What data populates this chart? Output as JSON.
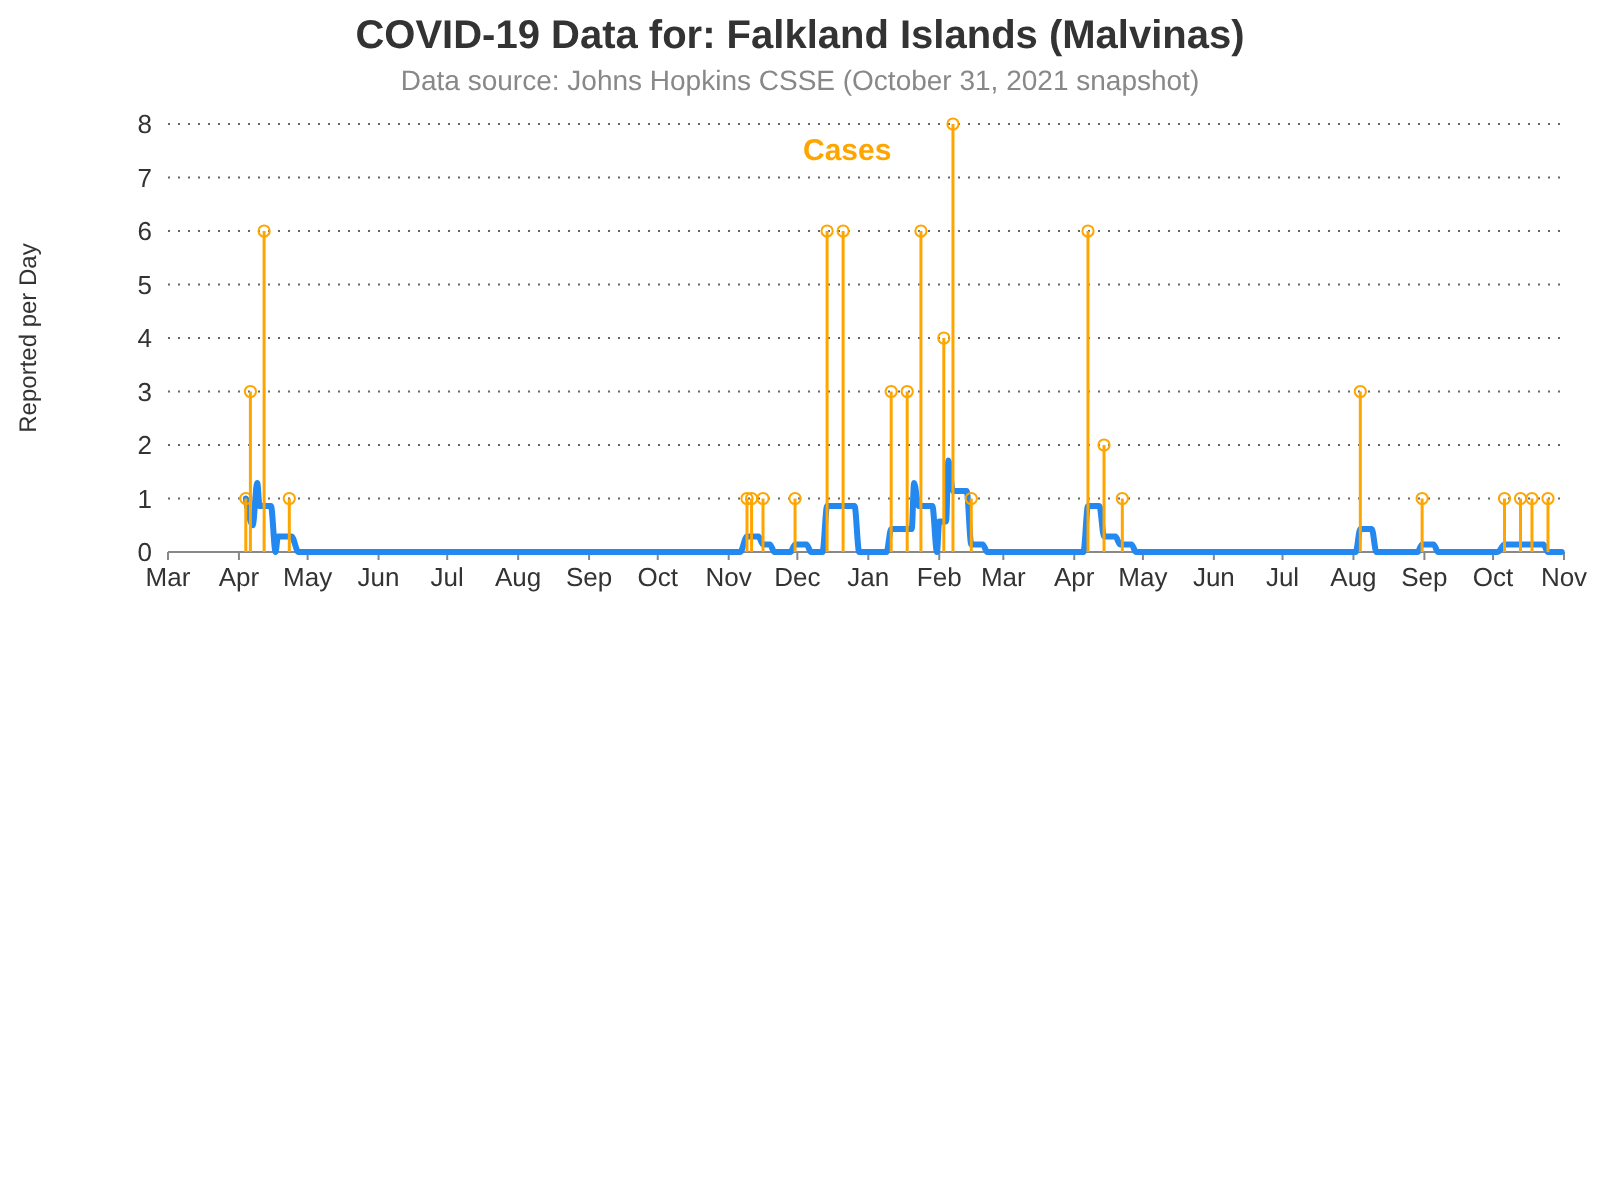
{
  "chart_data": {
    "type": "lollipop",
    "title": "COVID-19 Data for: Falkland Islands (Malvinas)",
    "subtitle": "Data source: Johns Hopkins CSSE (October 31, 2021 snapshot)",
    "ylabel": "Reported per Day",
    "xlim": [
      "2020-03-01",
      "2021-11-01"
    ],
    "xticks": [
      {
        "value": "2020-03-01",
        "label": "Mar"
      },
      {
        "value": "2020-04-01",
        "label": "Apr"
      },
      {
        "value": "2020-05-01",
        "label": "May"
      },
      {
        "value": "2020-06-01",
        "label": "Jun"
      },
      {
        "value": "2020-07-01",
        "label": "Jul"
      },
      {
        "value": "2020-08-01",
        "label": "Aug"
      },
      {
        "value": "2020-09-01",
        "label": "Sep"
      },
      {
        "value": "2020-10-01",
        "label": "Oct"
      },
      {
        "value": "2020-11-01",
        "label": "Nov"
      },
      {
        "value": "2020-12-01",
        "label": "Dec"
      },
      {
        "value": "2021-01-01",
        "label": "Jan"
      },
      {
        "value": "2021-02-01",
        "label": "Feb"
      },
      {
        "value": "2021-03-01",
        "label": "Mar"
      },
      {
        "value": "2021-04-01",
        "label": "Apr"
      },
      {
        "value": "2021-05-01",
        "label": "May"
      },
      {
        "value": "2021-06-01",
        "label": "Jun"
      },
      {
        "value": "2021-07-01",
        "label": "Jul"
      },
      {
        "value": "2021-08-01",
        "label": "Aug"
      },
      {
        "value": "2021-09-01",
        "label": "Sep"
      },
      {
        "value": "2021-10-01",
        "label": "Oct"
      },
      {
        "value": "2021-11-01",
        "label": "Nov"
      }
    ],
    "ylim": [
      0,
      8
    ],
    "yticks": [
      0,
      1,
      2,
      3,
      4,
      5,
      6,
      7,
      8
    ],
    "grid": "y",
    "series": [
      {
        "name": "Cases",
        "color": "#ffa500",
        "marker": "circle",
        "x": [
          "2020-04-04",
          "2020-04-06",
          "2020-04-12",
          "2020-04-23",
          "2020-11-09",
          "2020-11-11",
          "2020-11-16",
          "2020-11-30",
          "2020-12-14",
          "2020-12-21",
          "2021-01-11",
          "2021-01-18",
          "2021-01-24",
          "2021-02-03",
          "2021-02-07",
          "2021-02-15",
          "2021-04-07",
          "2021-04-14",
          "2021-04-22",
          "2021-08-04",
          "2021-08-31",
          "2021-10-06",
          "2021-10-13",
          "2021-10-18",
          "2021-10-25"
        ],
        "values": [
          1,
          3,
          6,
          1,
          1,
          1,
          1,
          1,
          6,
          6,
          3,
          3,
          6,
          4,
          8,
          1,
          6,
          2,
          1,
          3,
          1,
          1,
          1,
          1,
          1
        ]
      },
      {
        "type": "line",
        "color": "#2389f0",
        "x": [
          "2020-04-04",
          "2020-04-07",
          "2020-04-09",
          "2020-04-10",
          "2020-04-15",
          "2020-04-17",
          "2020-04-18",
          "2020-04-24",
          "2020-04-27",
          "2020-11-06",
          "2020-11-09",
          "2020-11-14",
          "2020-11-16",
          "2020-11-19",
          "2020-11-21",
          "2020-11-28",
          "2020-11-30",
          "2020-12-05",
          "2020-12-07",
          "2020-12-12",
          "2020-12-14",
          "2020-12-26",
          "2020-12-28",
          "2021-01-09",
          "2021-01-11",
          "2021-01-20",
          "2021-01-21",
          "2021-01-23",
          "2021-01-29",
          "2021-01-31",
          "2021-02-01",
          "2021-02-04",
          "2021-02-05",
          "2021-02-07",
          "2021-02-13",
          "2021-02-15",
          "2021-02-20",
          "2021-02-22",
          "2021-04-05",
          "2021-04-07",
          "2021-04-12",
          "2021-04-14",
          "2021-04-19",
          "2021-04-21",
          "2021-04-26",
          "2021-04-28",
          "2021-08-02",
          "2021-08-04",
          "2021-08-09",
          "2021-08-11",
          "2021-08-29",
          "2021-08-31",
          "2021-09-05",
          "2021-09-07",
          "2021-10-03",
          "2021-10-06",
          "2021-10-23",
          "2021-10-25",
          "2021-10-31"
        ],
        "values": [
          1,
          0.5,
          1.29,
          0.86,
          0.86,
          0,
          0.29,
          0.29,
          0,
          0,
          0.29,
          0.29,
          0.14,
          0.14,
          0,
          0,
          0.14,
          0.14,
          0,
          0,
          0.86,
          0.86,
          0,
          0,
          0.43,
          0.43,
          1.29,
          0.86,
          0.86,
          0,
          0.57,
          0.57,
          1.71,
          1.14,
          1.14,
          0.14,
          0.14,
          0,
          0,
          0.86,
          0.86,
          0.29,
          0.29,
          0.14,
          0.14,
          0,
          0,
          0.43,
          0.43,
          0,
          0,
          0.14,
          0.14,
          0,
          0,
          0.14,
          0.14,
          0,
          0
        ]
      }
    ]
  }
}
